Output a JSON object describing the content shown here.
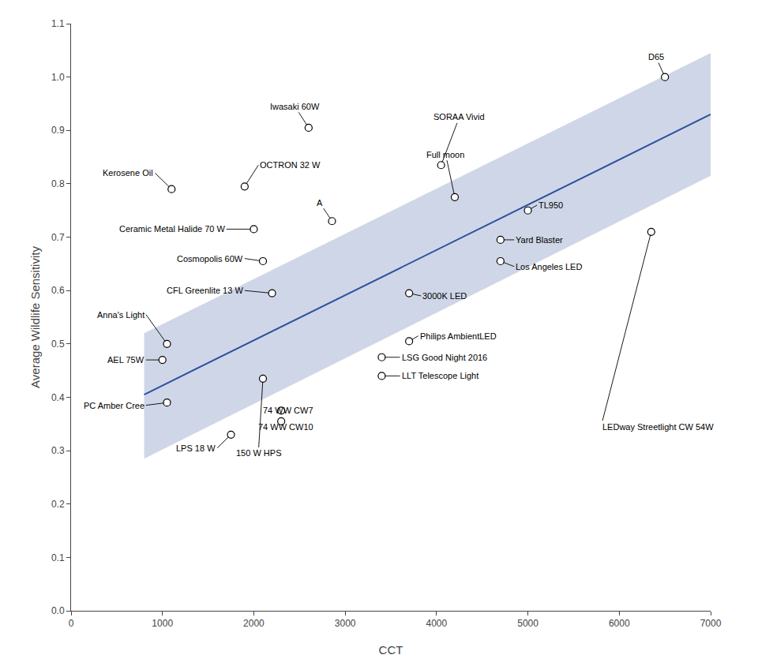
{
  "chart_data": {
    "type": "scatter",
    "xlabel": "CCT",
    "ylabel": "Average Wildlife Sensitivity",
    "x": [
      1100,
      1750,
      1000,
      1050,
      1050,
      1900,
      2600,
      2000,
      2100,
      2200,
      2856,
      2100,
      2300,
      2300,
      3400,
      3400,
      3700,
      3700,
      4200,
      4050,
      4700,
      4700,
      5000,
      6350,
      6500
    ],
    "values": [
      0.79,
      0.33,
      0.47,
      0.39,
      0.5,
      0.795,
      0.905,
      0.715,
      0.655,
      0.595,
      0.73,
      0.435,
      0.355,
      0.375,
      0.44,
      0.475,
      0.505,
      0.595,
      0.775,
      0.835,
      0.655,
      0.695,
      0.75,
      0.71,
      1.0
    ],
    "marker_color": "white",
    "marker_edge_color": "black",
    "annotations": [
      {
        "text": "Kerosene Oil",
        "label_x": 920,
        "label_y": 0.82,
        "anchor": "right"
      },
      {
        "text": "LPS 18 W",
        "label_x": 1600,
        "label_y": 0.305,
        "anchor": "right"
      },
      {
        "text": "AEL 75W",
        "label_x": 820,
        "label_y": 0.47,
        "anchor": "right"
      },
      {
        "text": "PC Amber Cree",
        "label_x": 820,
        "label_y": 0.385,
        "anchor": "right"
      },
      {
        "text": "Anna's Light",
        "label_x": 820,
        "label_y": 0.555,
        "anchor": "right"
      },
      {
        "text": "OCTRON 32 W",
        "label_x": 2050,
        "label_y": 0.835,
        "anchor": "left"
      },
      {
        "text": "Iwasaki 60W",
        "label_x": 2450,
        "label_y": 0.945,
        "anchor": "center"
      },
      {
        "text": "Ceramic Metal Halide 70 W",
        "label_x": 1700,
        "label_y": 0.715,
        "anchor": "right"
      },
      {
        "text": "Cosmopolis 60W",
        "label_x": 1900,
        "label_y": 0.66,
        "anchor": "right"
      },
      {
        "text": "CFL Greenlite 13 W",
        "label_x": 1900,
        "label_y": 0.6,
        "anchor": "right"
      },
      {
        "text": "A",
        "label_x": 2720,
        "label_y": 0.765,
        "anchor": "center"
      },
      {
        "text": "150 W HPS",
        "label_x": 2050,
        "label_y": 0.295,
        "anchor": "center"
      },
      {
        "text": "74 WW CW10",
        "label_x": 2350,
        "label_y": 0.345,
        "anchor": "center"
      },
      {
        "text": "74 WW CW7",
        "label_x": 2380,
        "label_y": 0.375,
        "anchor": "center"
      },
      {
        "text": "LLT Telescope Light",
        "label_x": 3600,
        "label_y": 0.44,
        "anchor": "left"
      },
      {
        "text": "LSG Good Night 2016",
        "label_x": 3600,
        "label_y": 0.475,
        "anchor": "left"
      },
      {
        "text": "Philips AmbientLED",
        "label_x": 3800,
        "label_y": 0.515,
        "anchor": "left"
      },
      {
        "text": "3000K LED",
        "label_x": 3830,
        "label_y": 0.59,
        "anchor": "left"
      },
      {
        "text": "Full moon",
        "label_x": 4100,
        "label_y": 0.855,
        "anchor": "center"
      },
      {
        "text": "SORAA Vivid",
        "label_x": 4250,
        "label_y": 0.925,
        "anchor": "center"
      },
      {
        "text": "Los Angeles LED",
        "label_x": 4850,
        "label_y": 0.645,
        "anchor": "left"
      },
      {
        "text": "Yard Blaster",
        "label_x": 4850,
        "label_y": 0.695,
        "anchor": "left"
      },
      {
        "text": "TL950",
        "label_x": 5100,
        "label_y": 0.76,
        "anchor": "left"
      },
      {
        "text": "LEDway Streetlight CW 54W",
        "label_x": 5800,
        "label_y": 0.345,
        "anchor": "left"
      },
      {
        "text": "D65",
        "label_x": 6400,
        "label_y": 1.038,
        "anchor": "center"
      }
    ],
    "regression": {
      "x": [
        800,
        7000
      ],
      "y": [
        0.405,
        0.93
      ],
      "color": "#2c4f9e"
    },
    "ci_band": {
      "x": [
        800,
        7000,
        7000,
        800
      ],
      "y": [
        0.52,
        1.045,
        0.815,
        0.285
      ],
      "color": "#a8b4d4"
    },
    "xlim": [
      0,
      7000
    ],
    "ylim": [
      0.0,
      1.1
    ],
    "xticks": [
      0,
      1000,
      2000,
      3000,
      4000,
      5000,
      6000,
      7000
    ],
    "yticks": [
      {
        "value": 0.0,
        "label": "0.0"
      },
      0.1,
      0.2,
      0.3,
      0.4,
      0.5,
      0.6,
      0.7,
      0.8,
      0.9,
      {
        "value": 1.0,
        "label": "1.0"
      },
      1.1
    ],
    "grid": false
  }
}
